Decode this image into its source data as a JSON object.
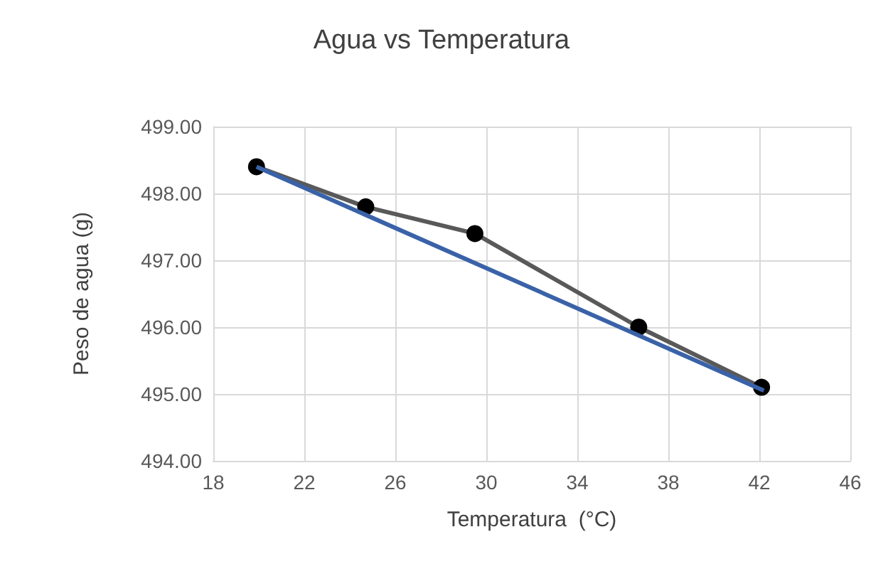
{
  "chart_data": {
    "type": "line",
    "title": "Agua vs Temperatura",
    "xlabel": "Temperatura  (°C)",
    "ylabel": "Peso de agua (g)",
    "series": [
      {
        "color": "#595959",
        "marker": "circle",
        "x": [
          19.9,
          24.7,
          29.5,
          36.7,
          42.1
        ],
        "values": [
          498.4,
          497.8,
          497.4,
          496.0,
          495.1
        ]
      },
      {
        "color": "#3a62a8",
        "marker": "none",
        "x": [
          19.9,
          42.2
        ],
        "values": [
          498.4,
          495.05
        ]
      }
    ],
    "xlim": [
      18,
      46
    ],
    "xticks": [
      18,
      22,
      26,
      30,
      34,
      38,
      42,
      46
    ],
    "ylim": [
      494,
      499
    ],
    "yticks": [
      {
        "value": 494,
        "label": "494.00"
      },
      {
        "value": 495,
        "label": "495.00"
      },
      {
        "value": 496,
        "label": "496.00"
      },
      {
        "value": 497,
        "label": "497.00"
      },
      {
        "value": 498,
        "label": "498.00"
      },
      {
        "value": 499,
        "label": "499.00"
      }
    ],
    "grid": true
  }
}
